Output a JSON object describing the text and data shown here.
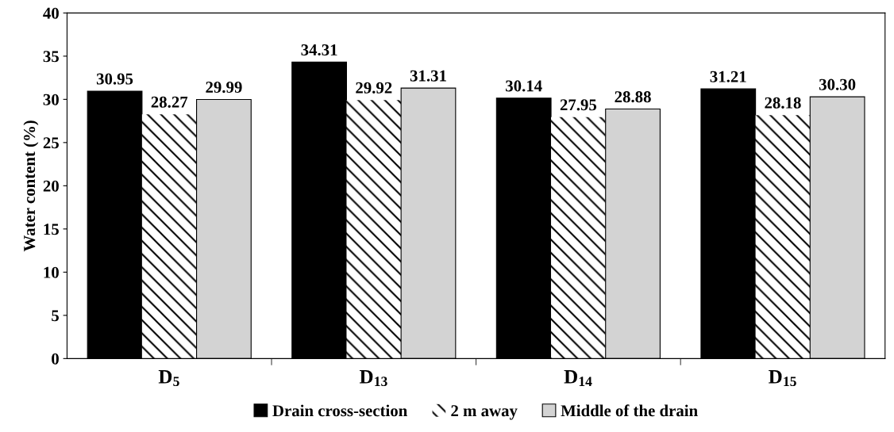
{
  "chart_data": {
    "type": "bar",
    "ylabel": "Water content (%)",
    "categories": [
      "D$_{5}$",
      "D$_{13}$",
      "D$_{14}$",
      "D$_{15}$"
    ],
    "series": [
      {
        "name": "Drain cross-section",
        "color": "#000000",
        "values": [
          30.95,
          34.31,
          30.14,
          31.21
        ],
        "value_labels": [
          "30.95",
          "34.31",
          "30.14",
          "31.21"
        ]
      },
      {
        "name": "2 m away",
        "color": "#000000",
        "values": [
          28.27,
          29.92,
          27.95,
          28.18
        ],
        "value_labels": [
          "28.27",
          "29.92",
          "27.95",
          "28.18"
        ]
      },
      {
        "name": "Middle of the drain",
        "color": "#d3d3d3",
        "values": [
          29.99,
          31.31,
          28.88,
          30.3
        ],
        "value_labels": [
          "29.99",
          "31.31",
          "28.88",
          "30.30"
        ]
      }
    ],
    "ylim": [
      0,
      40
    ],
    "yticks": [
      0,
      5,
      10,
      15,
      20,
      25,
      30,
      35,
      40
    ],
    "legend": "bottom",
    "grid": false
  }
}
